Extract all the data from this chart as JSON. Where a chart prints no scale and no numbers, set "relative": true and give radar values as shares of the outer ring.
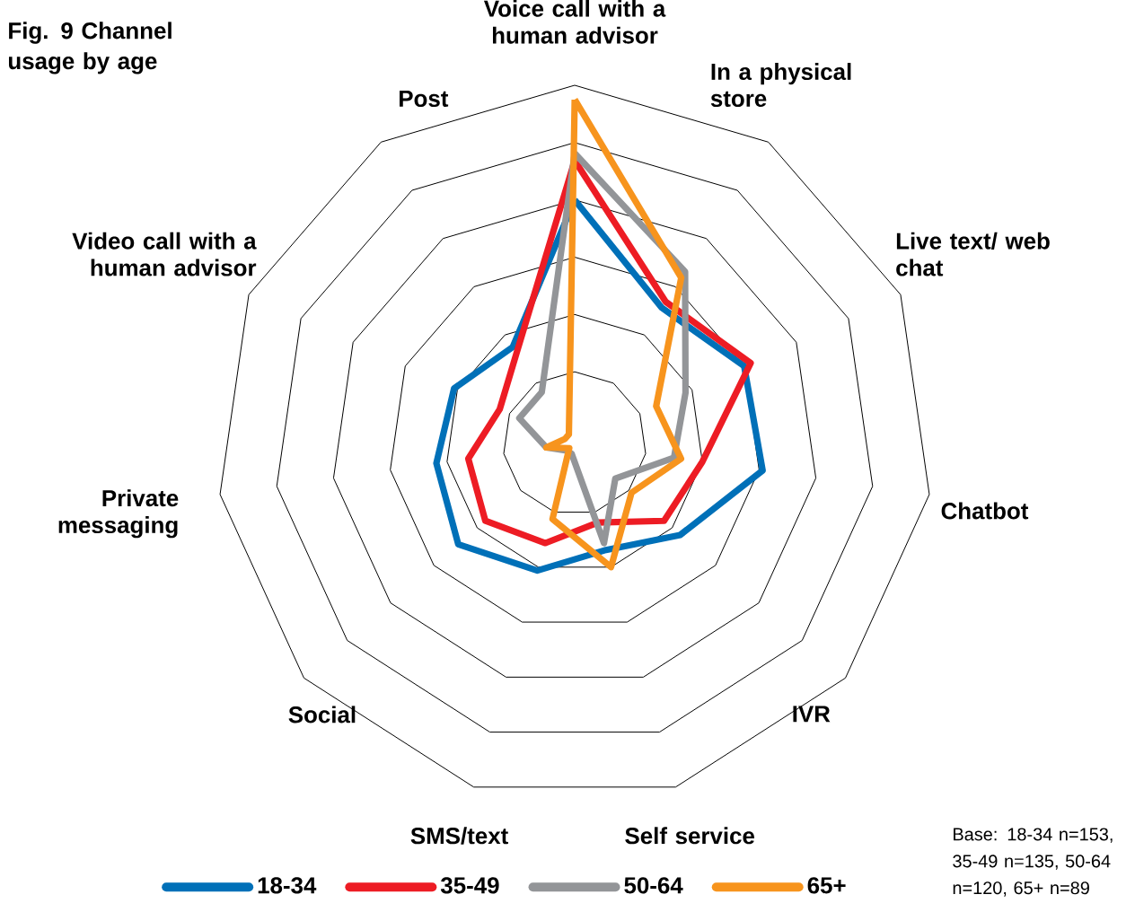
{
  "chart_data": {
    "type": "radar",
    "title": "Fig. 9 Channel usage by age",
    "relative": true,
    "grid": true,
    "legend": "bottom",
    "marker": "none",
    "categories": [
      "Voice call with a human advisor",
      "In a physical store",
      "Live text/ web chat",
      "Chatbot",
      "IVR",
      "Self service",
      "SMS/text",
      "Social",
      "Private messaging",
      "Video call with a human advisor",
      "Post"
    ],
    "series": [
      {
        "name": "18-34",
        "color": "#0070b8",
        "values": [
          0.68,
          0.45,
          0.52,
          0.53,
          0.39,
          0.31,
          0.37,
          0.43,
          0.39,
          0.37,
          0.32
        ]
      },
      {
        "name": "35-49",
        "color": "#ed1c24",
        "values": [
          0.79,
          0.47,
          0.54,
          0.36,
          0.33,
          0.23,
          0.29,
          0.33,
          0.3,
          0.23,
          0.3
        ]
      },
      {
        "name": "50-64",
        "color": "#939598",
        "values": [
          0.81,
          0.57,
          0.34,
          0.28,
          0.15,
          0.29,
          0.03,
          0.03,
          0.08,
          0.17,
          0.17
        ]
      },
      {
        "name": "65+",
        "color": "#f7941d",
        "values": [
          0.96,
          0.55,
          0.25,
          0.3,
          0.21,
          0.36,
          0.22,
          0.02,
          0.08,
          0.03,
          0.03
        ]
      }
    ],
    "annotations": [
      "Base: 18-34 n=153, 35-49 n=135, 50-64 n=120, 65+ n=89"
    ]
  }
}
